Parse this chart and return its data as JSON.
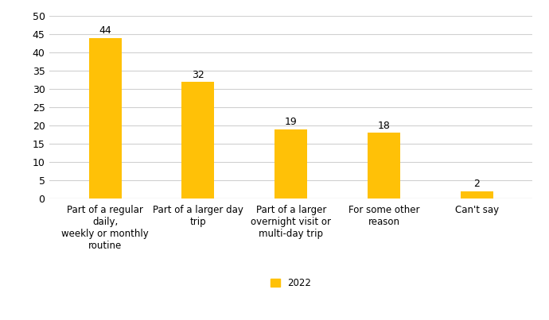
{
  "categories": [
    "Part of a regular\ndaily,\nweekly or monthly\nroutine",
    "Part of a larger day\ntrip",
    "Part of a larger\novernight visit or\nmulti-day trip",
    "For some other\nreason",
    "Can't say"
  ],
  "values": [
    44,
    32,
    19,
    18,
    2
  ],
  "bar_color": "#FFC107",
  "ylim": [
    0,
    50
  ],
  "yticks": [
    0,
    5,
    10,
    15,
    20,
    25,
    30,
    35,
    40,
    45,
    50
  ],
  "legend_label": "2022",
  "background_color": "#ffffff",
  "grid_color": "#d0d0d0",
  "label_fontsize": 8.5,
  "tick_fontsize": 9,
  "value_fontsize": 9,
  "bar_width": 0.35
}
